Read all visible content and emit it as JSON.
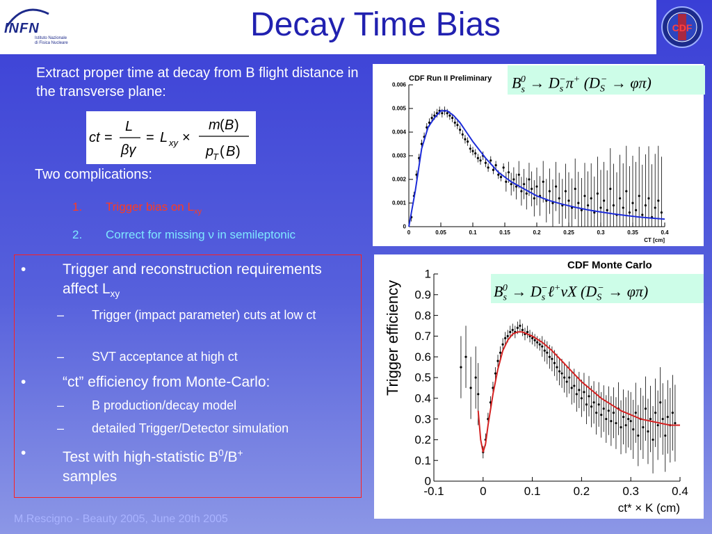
{
  "header": {
    "title": "Decay Time Bias",
    "logo_left_text": "INFN",
    "logo_left_sub1": "Istituto Nazionale",
    "logo_left_sub2": "di Fisica Nucleare",
    "logo_right_text": "CDF"
  },
  "left": {
    "intro": "Extract proper time at decay from B flight distance in the transverse plane:",
    "complications_heading": "Two complications:",
    "complications": [
      {
        "num": "1.",
        "text": "Trigger bias on L",
        "sub": "xy"
      },
      {
        "num": "2.",
        "text": "Correct for missing ν in semileptonic"
      }
    ],
    "bullets": [
      {
        "text": "Trigger and reconstruction requirements affect L",
        "sub": "xy",
        "subitems": [
          "Trigger (impact parameter) cuts at low ct",
          "SVT acceptance at high ct"
        ]
      },
      {
        "text": "“ct” efficiency from Monte-Carlo:",
        "subitems": [
          "B production/decay model",
          "detailed Trigger/Detector simulation"
        ]
      },
      {
        "text": "Test with high-statistic B",
        "sup1": "0",
        "mid": "/B",
        "sup2": "+",
        "tail": " samples"
      }
    ],
    "bullet_symbol": "•",
    "dash_symbol": "–"
  },
  "footer": "M.Rescigno - Beauty 2005,  June 20th 2005",
  "colors": {
    "accent": "#2121b0",
    "red": "#ff3b1f",
    "cyan": "#7fe8ff",
    "eqbox": "#cdfde8"
  },
  "chart_data": [
    {
      "type": "scatter",
      "title": "CDF Run II Preliminary",
      "equation": "B_s^0 → D_s^- π^+ (D_S^- → φπ)",
      "xlabel": "CT [cm]",
      "ylabel": "",
      "xlim": [
        0,
        0.4
      ],
      "ylim": [
        0,
        0.006
      ],
      "x_ticks": [
        "0",
        "0.05",
        "0.1",
        "0.15",
        "0.2",
        "0.25",
        "0.3",
        "0.35",
        "0.4"
      ],
      "y_ticks": [
        "0",
        "0.001",
        "0.002",
        "0.003",
        "0.004",
        "0.005",
        "0.006"
      ],
      "series": [
        {
          "x": [
            0.004,
            0.008,
            0.012,
            0.016,
            0.02,
            0.024,
            0.028,
            0.032,
            0.036,
            0.04,
            0.044,
            0.048,
            0.052,
            0.056,
            0.06,
            0.064,
            0.068,
            0.072,
            0.076,
            0.08,
            0.084,
            0.088,
            0.092,
            0.096,
            0.1,
            0.104,
            0.108,
            0.112,
            0.116,
            0.12,
            0.124,
            0.128,
            0.132,
            0.136,
            0.14,
            0.144,
            0.148,
            0.152,
            0.156,
            0.16,
            0.164,
            0.168,
            0.172,
            0.176,
            0.18,
            0.184,
            0.188,
            0.192,
            0.196,
            0.2,
            0.205,
            0.21,
            0.215,
            0.22,
            0.225,
            0.23,
            0.235,
            0.24,
            0.245,
            0.25,
            0.255,
            0.26,
            0.265,
            0.27,
            0.275,
            0.28,
            0.285,
            0.29,
            0.295,
            0.3,
            0.305,
            0.31,
            0.315,
            0.32,
            0.325,
            0.33,
            0.335,
            0.34,
            0.345,
            0.35,
            0.355,
            0.36,
            0.365,
            0.37,
            0.375,
            0.38,
            0.385,
            0.39,
            0.395
          ],
          "y": [
            0.0004,
            0.0013,
            0.0022,
            0.0029,
            0.0035,
            0.0038,
            0.0042,
            0.0044,
            0.0046,
            0.0047,
            0.0048,
            0.0049,
            0.0048,
            0.0049,
            0.0048,
            0.0047,
            0.0046,
            0.0044,
            0.0043,
            0.0041,
            0.0039,
            0.0037,
            0.0036,
            0.0033,
            0.0032,
            0.0031,
            0.0029,
            0.0028,
            0.003,
            0.0027,
            0.0025,
            0.0028,
            0.0024,
            0.0026,
            0.0022,
            0.0021,
            0.0025,
            0.0019,
            0.0023,
            0.0018,
            0.002,
            0.0017,
            0.0022,
            0.0015,
            0.0018,
            0.0014,
            0.002,
            0.0016,
            0.0012,
            0.0017,
            0.0013,
            0.0019,
            0.0011,
            0.0015,
            0.001,
            0.0017,
            0.0012,
            0.0009,
            0.0015,
            0.0011,
            0.0008,
            0.0016,
            0.001,
            0.0007,
            0.0013,
            0.0009,
            0.0012,
            0.0006,
            0.0014,
            0.0008,
            0.0011,
            0.0007,
            0.0016,
            0.0009,
            0.0005,
            0.0012,
            0.0008,
            0.0015,
            0.0006,
            0.001,
            0.0007,
            0.0013,
            0.0005,
            0.0009,
            0.0012,
            0.0004,
            0.0008,
            0.0011,
            0.0006
          ]
        },
        {
          "type": "line",
          "x": [
            0,
            0.01,
            0.02,
            0.03,
            0.04,
            0.05,
            0.06,
            0.07,
            0.08,
            0.09,
            0.1,
            0.12,
            0.14,
            0.16,
            0.18,
            0.2,
            0.22,
            0.24,
            0.26,
            0.28,
            0.3,
            0.32,
            0.34,
            0.36,
            0.38,
            0.4
          ],
          "y": [
            0,
            0.0015,
            0.0033,
            0.0042,
            0.0046,
            0.0049,
            0.0049,
            0.0047,
            0.0044,
            0.004,
            0.0036,
            0.0029,
            0.0023,
            0.0019,
            0.0016,
            0.0013,
            0.0011,
            0.00095,
            0.00082,
            0.00071,
            0.00062,
            0.00054,
            0.00047,
            0.00041,
            0.00036,
            0.00032
          ]
        }
      ]
    },
    {
      "type": "scatter",
      "title": "CDF Monte Carlo",
      "equation": "B_s^0 → D_s^- ℓ^+ νX (D_S^- → φπ)",
      "xlabel": "ct* × K (cm)",
      "ylabel": "Trigger efficiency",
      "xlim": [
        -0.1,
        0.4
      ],
      "ylim": [
        0,
        1
      ],
      "x_ticks": [
        "-0.1",
        "0",
        "0.1",
        "0.2",
        "0.3",
        "0.4"
      ],
      "y_ticks": [
        "0",
        "0.1",
        "0.2",
        "0.3",
        "0.4",
        "0.5",
        "0.6",
        "0.7",
        "0.8",
        "0.9",
        "1"
      ],
      "series": [
        {
          "x": [
            -0.045,
            -0.035,
            -0.025,
            -0.015,
            -0.01,
            0.0,
            0.005,
            0.01,
            0.015,
            0.02,
            0.025,
            0.03,
            0.035,
            0.04,
            0.045,
            0.05,
            0.055,
            0.06,
            0.065,
            0.07,
            0.075,
            0.08,
            0.085,
            0.09,
            0.095,
            0.1,
            0.105,
            0.11,
            0.115,
            0.12,
            0.125,
            0.13,
            0.135,
            0.14,
            0.145,
            0.15,
            0.155,
            0.16,
            0.165,
            0.17,
            0.175,
            0.18,
            0.185,
            0.19,
            0.195,
            0.2,
            0.205,
            0.21,
            0.215,
            0.22,
            0.225,
            0.23,
            0.235,
            0.24,
            0.245,
            0.25,
            0.255,
            0.26,
            0.265,
            0.27,
            0.275,
            0.28,
            0.285,
            0.29,
            0.295,
            0.3,
            0.305,
            0.31,
            0.315,
            0.32,
            0.325,
            0.33,
            0.335,
            0.34,
            0.345,
            0.35,
            0.355,
            0.36,
            0.365,
            0.37,
            0.375,
            0.38,
            0.385,
            0.39
          ],
          "y": [
            0.55,
            0.6,
            0.45,
            0.5,
            0.42,
            0.14,
            0.2,
            0.3,
            0.38,
            0.45,
            0.52,
            0.58,
            0.62,
            0.66,
            0.69,
            0.7,
            0.72,
            0.73,
            0.72,
            0.74,
            0.75,
            0.73,
            0.71,
            0.72,
            0.7,
            0.69,
            0.68,
            0.67,
            0.66,
            0.65,
            0.63,
            0.62,
            0.6,
            0.59,
            0.57,
            0.55,
            0.53,
            0.52,
            0.5,
            0.48,
            0.5,
            0.45,
            0.46,
            0.42,
            0.44,
            0.4,
            0.43,
            0.37,
            0.41,
            0.36,
            0.38,
            0.33,
            0.37,
            0.32,
            0.35,
            0.3,
            0.34,
            0.29,
            0.33,
            0.28,
            0.35,
            0.26,
            0.31,
            0.27,
            0.3,
            0.29,
            0.25,
            0.33,
            0.22,
            0.3,
            0.26,
            0.35,
            0.24,
            0.3,
            0.2,
            0.33,
            0.27,
            0.38,
            0.3,
            0.22,
            0.31,
            0.27,
            0.33,
            0.28
          ]
        },
        {
          "type": "line",
          "x": [
            -0.01,
            -0.005,
            0.0,
            0.005,
            0.01,
            0.02,
            0.03,
            0.04,
            0.05,
            0.06,
            0.07,
            0.08,
            0.1,
            0.12,
            0.14,
            0.16,
            0.18,
            0.2,
            0.22,
            0.24,
            0.26,
            0.28,
            0.3,
            0.32,
            0.34,
            0.36,
            0.38,
            0.4
          ],
          "y": [
            0.34,
            0.2,
            0.14,
            0.18,
            0.27,
            0.42,
            0.54,
            0.63,
            0.68,
            0.71,
            0.72,
            0.72,
            0.7,
            0.67,
            0.63,
            0.58,
            0.53,
            0.48,
            0.44,
            0.4,
            0.37,
            0.34,
            0.32,
            0.3,
            0.29,
            0.28,
            0.27,
            0.27
          ]
        }
      ]
    }
  ]
}
